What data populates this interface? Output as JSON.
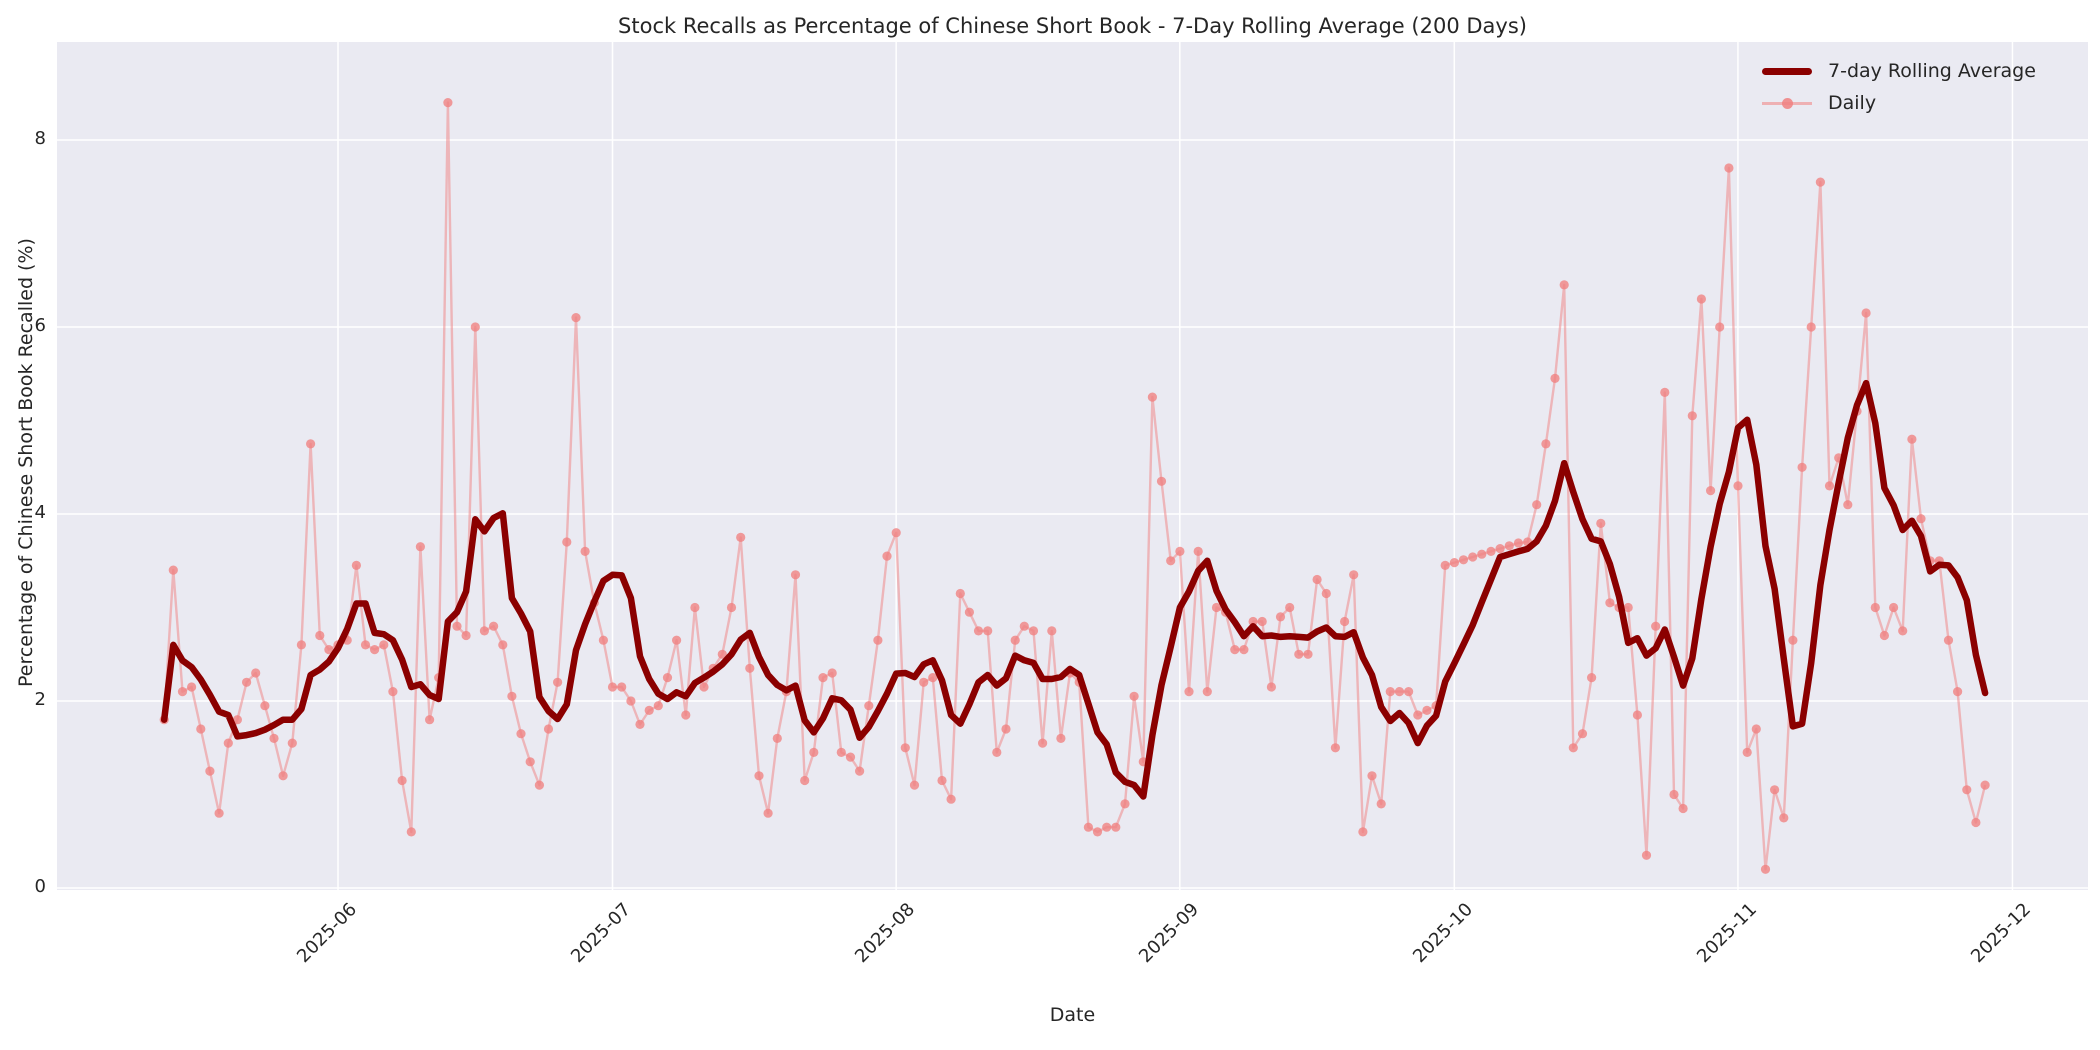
{
  "chart_data": {
    "type": "line",
    "title": "Stock Recalls as Percentage of Chinese Short Book - 7-Day Rolling Average (200 Days)",
    "xlabel": "Date",
    "ylabel": "Percentage of Chinese Short Book Recalled (%)",
    "ylim": [
      0,
      9.05
    ],
    "yticks": [
      0,
      2,
      4,
      6,
      8
    ],
    "grid": true,
    "legend_position": "upper right",
    "x_start_date": "2025-05-13",
    "x_days": 200,
    "x_tick_labels": [
      "2025-06",
      "2025-07",
      "2025-08",
      "2025-09",
      "2025-10",
      "2025-11",
      "2025-12"
    ],
    "x_tick_day_offsets": [
      19,
      49,
      80,
      111,
      141,
      172,
      202
    ],
    "colors": {
      "figure_background": "#ffffff",
      "axes_background": "#eaeaf2",
      "gridline": "#ffffff",
      "rolling_line": "#8b0000",
      "daily_line": "rgba(240,128,128,0.5)",
      "daily_marker": "rgba(240,128,128,0.78)",
      "text": "#262626"
    },
    "series": [
      {
        "name": "7-day Rolling Average",
        "color": "#8b0000",
        "derived_from": "Daily",
        "window": 7,
        "min_periods": 1
      },
      {
        "name": "Daily",
        "color": "#f08080",
        "marker": "circle",
        "values": [
          1.8,
          3.4,
          2.1,
          2.15,
          1.7,
          1.25,
          0.8,
          1.55,
          1.8,
          2.2,
          2.3,
          1.95,
          1.6,
          1.2,
          1.55,
          2.6,
          4.75,
          2.7,
          2.55,
          2.6,
          2.65,
          3.45,
          2.6,
          2.55,
          2.6,
          2.1,
          1.15,
          0.6,
          3.65,
          1.8,
          2.25,
          8.4,
          2.8,
          2.7,
          6.0,
          2.75,
          2.8,
          2.6,
          2.05,
          1.65,
          1.35,
          1.1,
          1.7,
          2.2,
          3.7,
          6.1,
          3.6,
          3.05,
          2.65,
          2.15,
          2.15,
          2.0,
          1.75,
          1.9,
          1.95,
          2.25,
          2.65,
          1.85,
          3.0,
          2.15,
          2.35,
          2.5,
          3.0,
          3.75,
          2.35,
          1.2,
          0.8,
          1.6,
          2.1,
          3.35,
          1.15,
          1.45,
          2.25,
          2.3,
          1.45,
          1.4,
          1.25,
          1.95,
          2.65,
          3.55,
          3.8,
          1.5,
          1.1,
          2.2,
          2.25,
          1.15,
          0.95,
          3.15,
          2.95,
          2.75,
          2.75,
          1.45,
          1.7,
          2.65,
          2.8,
          2.75,
          1.55,
          2.75,
          1.6,
          2.3,
          2.2,
          0.65,
          0.6,
          0.65,
          0.65,
          0.9,
          2.05,
          1.35,
          5.25,
          4.35,
          3.5,
          3.6,
          2.1,
          3.6,
          2.1,
          3.0,
          2.95,
          2.55,
          2.55,
          2.85,
          2.85,
          2.15,
          2.9,
          3.0,
          2.5,
          2.5,
          3.3,
          3.15,
          1.5,
          2.85,
          3.35,
          0.6,
          1.2,
          0.9,
          2.1,
          2.1,
          2.1,
          1.85,
          1.9,
          1.95,
          3.45,
          3.48,
          3.51,
          3.54,
          3.57,
          3.6,
          3.63,
          3.66,
          3.69,
          3.7,
          4.1,
          4.75,
          5.45,
          6.45,
          1.5,
          1.65,
          2.25,
          3.9,
          3.05,
          3.0,
          3.0,
          1.85,
          0.35,
          2.8,
          5.3,
          1.0,
          0.85,
          5.05,
          6.3,
          4.25,
          6.0,
          7.7,
          4.3,
          1.45,
          1.7,
          0.2,
          1.05,
          0.75,
          2.65,
          4.5,
          6.0,
          7.55,
          4.3,
          4.6,
          4.1,
          5.1,
          6.15,
          3.0,
          2.7,
          3.0,
          2.75,
          4.8,
          3.95,
          3.5,
          3.5,
          2.65,
          2.1,
          1.05,
          0.7,
          1.1
        ]
      }
    ]
  }
}
